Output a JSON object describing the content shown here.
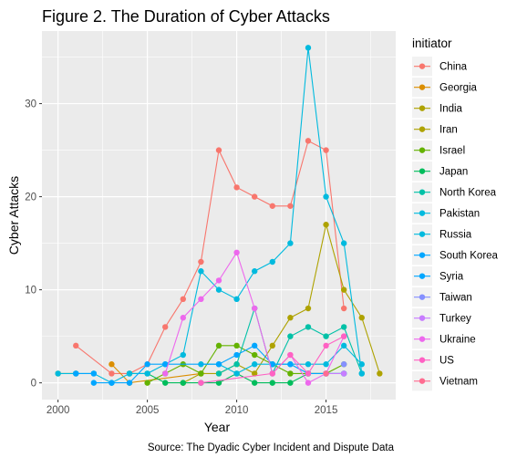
{
  "chart_data": {
    "type": "line",
    "title": "Figure 2. The Duration of Cyber Attacks",
    "xlabel": "Year",
    "ylabel": "Cyber Attacks",
    "caption": "Source: The Dyadic Cyber Incident and Dispute Data",
    "legend_title": "initiator",
    "legend_position": "right",
    "grid": true,
    "xlim": [
      1999.1,
      2018.9
    ],
    "ylim": [
      -1.8,
      37.8
    ],
    "x_ticks": [
      2000,
      2005,
      2010,
      2015
    ],
    "y_ticks": [
      0,
      10,
      20,
      30
    ],
    "series": [
      {
        "name": "China",
        "color": "#F8766D",
        "points": [
          [
            2001,
            4
          ],
          [
            2003,
            1
          ],
          [
            2004,
            1
          ],
          [
            2005,
            2
          ],
          [
            2006,
            6
          ],
          [
            2007,
            9
          ],
          [
            2008,
            13
          ],
          [
            2009,
            25
          ],
          [
            2010,
            21
          ],
          [
            2011,
            20
          ],
          [
            2012,
            19
          ],
          [
            2013,
            19
          ],
          [
            2014,
            26
          ],
          [
            2015,
            25
          ],
          [
            2016,
            8
          ]
        ]
      },
      {
        "name": "Georgia",
        "color": "#DB8E00",
        "points": [
          [
            2003,
            2
          ],
          [
            2004,
            0
          ],
          [
            2008,
            1
          ]
        ]
      },
      {
        "name": "India",
        "color": "#AEA200",
        "points": [
          [
            2007,
            0
          ],
          [
            2008,
            1
          ],
          [
            2009,
            1
          ],
          [
            2010,
            2
          ],
          [
            2011,
            1
          ],
          [
            2012,
            4
          ],
          [
            2013,
            7
          ],
          [
            2014,
            8
          ],
          [
            2015,
            17
          ],
          [
            2016,
            10
          ],
          [
            2017,
            7
          ],
          [
            2018,
            1
          ]
        ]
      },
      {
        "name": "Iran",
        "color": "#AEA200",
        "points": [
          [
            2000,
            1
          ],
          [
            2001,
            1
          ]
        ]
      },
      {
        "name": "Israel",
        "color": "#64B200",
        "points": [
          [
            2005,
            0
          ],
          [
            2006,
            1
          ],
          [
            2007,
            2
          ],
          [
            2008,
            1
          ],
          [
            2009,
            4
          ],
          [
            2010,
            4
          ],
          [
            2011,
            3
          ],
          [
            2012,
            2
          ],
          [
            2013,
            1
          ],
          [
            2014,
            1
          ],
          [
            2015,
            1
          ],
          [
            2016,
            2
          ]
        ]
      },
      {
        "name": "Japan",
        "color": "#00BD5C",
        "points": [
          [
            2004,
            1
          ],
          [
            2005,
            1
          ],
          [
            2006,
            0
          ],
          [
            2007,
            0
          ],
          [
            2008,
            0
          ],
          [
            2009,
            0
          ],
          [
            2010,
            1
          ],
          [
            2011,
            0
          ],
          [
            2012,
            0
          ],
          [
            2013,
            0
          ],
          [
            2014,
            1
          ],
          [
            2015,
            1
          ],
          [
            2016,
            1
          ]
        ]
      },
      {
        "name": "North Korea",
        "color": "#00C1A7",
        "points": [
          [
            2009,
            1
          ],
          [
            2010,
            2
          ],
          [
            2011,
            8
          ],
          [
            2012,
            1
          ],
          [
            2013,
            5
          ],
          [
            2014,
            6
          ],
          [
            2015,
            5
          ],
          [
            2016,
            6
          ],
          [
            2017,
            1
          ]
        ]
      },
      {
        "name": "Pakistan",
        "color": "#00BADE",
        "points": [
          [
            2008,
            2
          ],
          [
            2009,
            2
          ],
          [
            2010,
            1
          ],
          [
            2011,
            2
          ],
          [
            2012,
            2
          ],
          [
            2013,
            2
          ],
          [
            2014,
            2
          ],
          [
            2015,
            2
          ],
          [
            2016,
            4
          ],
          [
            2017,
            2
          ]
        ]
      },
      {
        "name": "Russia",
        "color": "#00BADE",
        "points": [
          [
            2000,
            1
          ],
          [
            2001,
            1
          ],
          [
            2002,
            1
          ],
          [
            2003,
            0
          ],
          [
            2004,
            1
          ],
          [
            2005,
            1
          ],
          [
            2006,
            2
          ],
          [
            2007,
            3
          ],
          [
            2008,
            12
          ],
          [
            2009,
            10
          ],
          [
            2010,
            9
          ],
          [
            2011,
            12
          ],
          [
            2012,
            13
          ],
          [
            2013,
            15
          ],
          [
            2014,
            36
          ],
          [
            2015,
            20
          ],
          [
            2016,
            15
          ],
          [
            2017,
            1
          ]
        ]
      },
      {
        "name": "South Korea",
        "color": "#00A6FF",
        "points": [
          [
            2002,
            0
          ],
          [
            2003,
            0
          ],
          [
            2004,
            0
          ],
          [
            2005,
            2
          ],
          [
            2006,
            2
          ],
          [
            2009,
            2
          ],
          [
            2010,
            3
          ],
          [
            2011,
            4
          ],
          [
            2012,
            2
          ],
          [
            2013,
            2
          ],
          [
            2014,
            1
          ],
          [
            2015,
            1
          ],
          [
            2016,
            1
          ]
        ]
      },
      {
        "name": "Syria",
        "color": "#00A6FF",
        "points": [
          [
            2001,
            1
          ],
          [
            2002,
            1
          ]
        ]
      },
      {
        "name": "Taiwan",
        "color": "#8590FF",
        "points": [
          [
            2016,
            2
          ]
        ]
      },
      {
        "name": "Turkey",
        "color": "#C77CFF",
        "points": [
          [
            2015,
            1
          ],
          [
            2016,
            1
          ]
        ]
      },
      {
        "name": "Ukraine",
        "color": "#ED68ED",
        "points": [
          [
            2006,
            1
          ],
          [
            2007,
            7
          ],
          [
            2008,
            9
          ],
          [
            2009,
            11
          ],
          [
            2010,
            14
          ],
          [
            2011,
            8
          ],
          [
            2012,
            1
          ],
          [
            2013,
            3
          ],
          [
            2014,
            0
          ],
          [
            2015,
            1
          ],
          [
            2016,
            5
          ]
        ]
      },
      {
        "name": "US",
        "color": "#FF61C3",
        "points": [
          [
            2008,
            0
          ],
          [
            2012,
            1
          ],
          [
            2013,
            3
          ],
          [
            2014,
            1
          ],
          [
            2015,
            4
          ],
          [
            2016,
            5
          ]
        ]
      },
      {
        "name": "Vietnam",
        "color": "#FF6C91",
        "points": [
          [
            2015,
            1
          ]
        ]
      }
    ]
  }
}
